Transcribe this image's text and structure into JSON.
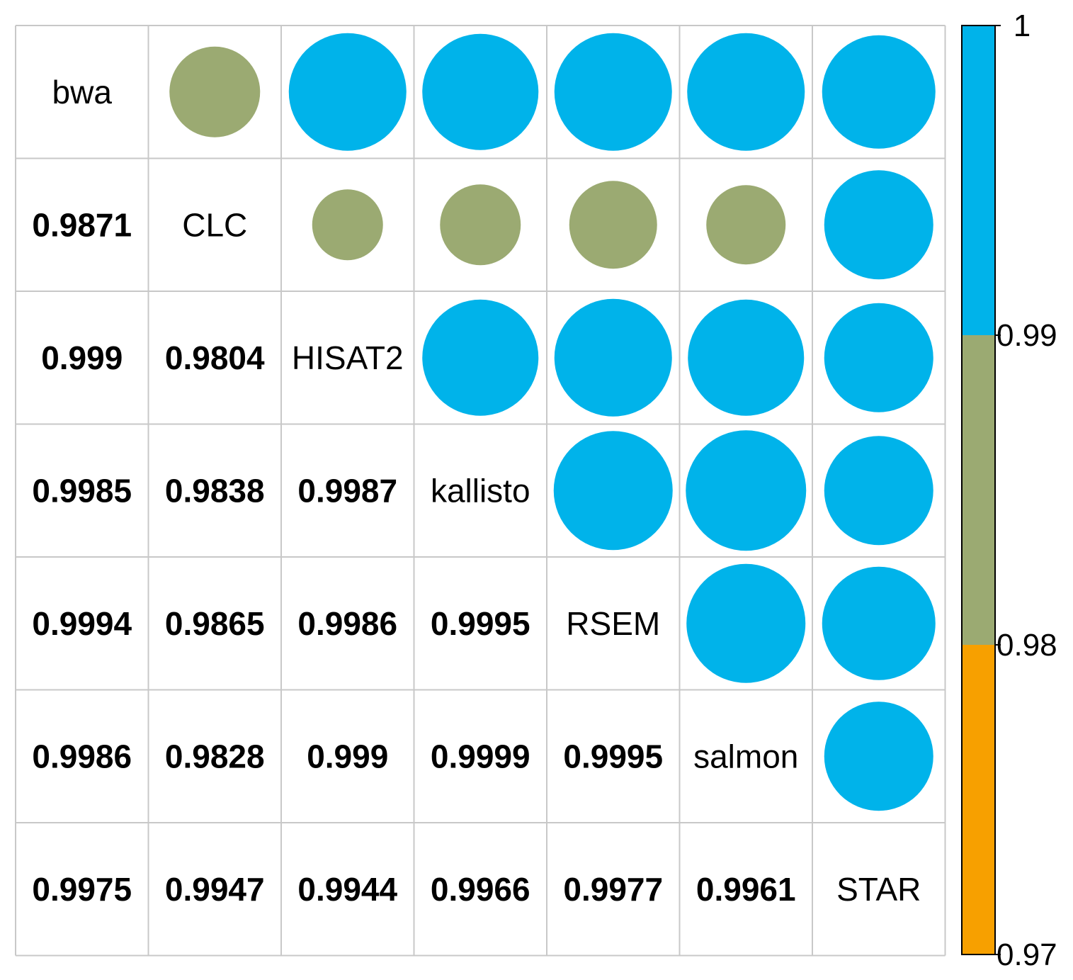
{
  "chart_data": {
    "type": "heatmap",
    "variables": [
      "bwa",
      "CLC",
      "HISAT2",
      "kallisto",
      "RSEM",
      "salmon",
      "STAR"
    ],
    "matrix": [
      [
        1,
        0.9871,
        0.999,
        0.9985,
        0.9994,
        0.9986,
        0.9975
      ],
      [
        0.9871,
        1,
        0.9804,
        0.9838,
        0.9865,
        0.9828,
        0.9947
      ],
      [
        0.999,
        0.9804,
        1,
        0.9987,
        0.9986,
        0.999,
        0.9944
      ],
      [
        0.9985,
        0.9838,
        0.9987,
        1,
        0.9995,
        0.9999,
        0.9966
      ],
      [
        0.9994,
        0.9865,
        0.9986,
        0.9995,
        1,
        0.9995,
        0.9977
      ],
      [
        0.9986,
        0.9828,
        0.999,
        0.9999,
        0.9995,
        1,
        0.9961
      ],
      [
        0.9975,
        0.9947,
        0.9944,
        0.9966,
        0.9977,
        0.9961,
        1
      ]
    ],
    "lower_labels": [
      [
        "0.9871"
      ],
      [
        "0.999",
        "0.9804"
      ],
      [
        "0.9985",
        "0.9838",
        "0.9987"
      ],
      [
        "0.9994",
        "0.9865",
        "0.9986",
        "0.9995"
      ],
      [
        "0.9986",
        "0.9828",
        "0.999",
        "0.9999",
        "0.9995"
      ],
      [
        "0.9975",
        "0.9947",
        "0.9944",
        "0.9966",
        "0.9977",
        "0.9961"
      ]
    ],
    "upper_circle_radius": [
      [
        null,
        64,
        83,
        82,
        83,
        83,
        80
      ],
      [
        null,
        null,
        50,
        57,
        62,
        56,
        77
      ],
      [
        null,
        null,
        null,
        82,
        83,
        82,
        77
      ],
      [
        null,
        null,
        null,
        null,
        84,
        85,
        77
      ],
      [
        null,
        null,
        null,
        null,
        null,
        84,
        80
      ],
      [
        null,
        null,
        null,
        null,
        null,
        null,
        77
      ],
      [
        null,
        null,
        null,
        null,
        null,
        null,
        null
      ]
    ],
    "colorbar": {
      "range": [
        0.97,
        1
      ],
      "bins": [
        {
          "from": 0.97,
          "to": 0.98,
          "color": "#F7A000"
        },
        {
          "from": 0.98,
          "to": 0.99,
          "color": "#9BAA72"
        },
        {
          "from": 0.99,
          "to": 1,
          "color": "#00B3EA"
        }
      ],
      "ticks": [
        "1",
        "0.99",
        "0.98",
        "0.97"
      ],
      "tick_values": [
        1,
        0.99,
        0.98,
        0.97
      ]
    },
    "grid": true,
    "legend_position": "right"
  }
}
